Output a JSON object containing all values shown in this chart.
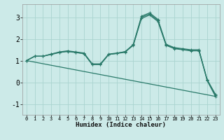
{
  "xlabel": "Humidex (Indice chaleur)",
  "ylabel": "",
  "background_color": "#cceae8",
  "grid_color": "#aad4d0",
  "line_color": "#2a7a6a",
  "xlim": [
    -0.5,
    23.5
  ],
  "ylim": [
    -1.5,
    3.6
  ],
  "yticks": [
    -1,
    0,
    1,
    2,
    3
  ],
  "xtick_labels": [
    "0",
    "1",
    "2",
    "3",
    "4",
    "5",
    "6",
    "7",
    "8",
    "9",
    "10",
    "11",
    "12",
    "13",
    "14",
    "15",
    "16",
    "17",
    "18",
    "19",
    "20",
    "21",
    "22",
    "23"
  ],
  "xtick_positions": [
    0,
    1,
    2,
    3,
    4,
    5,
    6,
    7,
    8,
    9,
    10,
    11,
    12,
    13,
    14,
    15,
    16,
    17,
    18,
    19,
    20,
    21,
    22,
    23
  ],
  "lines": [
    {
      "x": [
        0,
        1,
        2,
        3,
        4,
        5,
        6,
        7,
        8,
        9,
        10,
        11,
        12,
        13,
        14,
        15,
        16,
        17,
        18,
        19,
        20,
        21,
        22,
        23
      ],
      "y": [
        1.0,
        1.2,
        1.2,
        1.3,
        1.4,
        1.45,
        1.4,
        1.35,
        0.85,
        0.85,
        1.3,
        1.35,
        1.4,
        1.75,
        3.05,
        3.2,
        2.9,
        1.75,
        1.6,
        1.55,
        1.5,
        1.5,
        0.1,
        -0.6
      ],
      "has_marker": true
    },
    {
      "x": [
        0,
        1,
        2,
        3,
        4,
        5,
        6,
        7,
        8,
        9,
        10,
        11,
        12,
        13,
        14,
        15,
        16,
        17,
        18,
        19,
        20,
        21,
        22,
        23
      ],
      "y": [
        1.0,
        1.2,
        1.2,
        1.3,
        1.38,
        1.43,
        1.38,
        1.32,
        0.82,
        0.82,
        1.28,
        1.33,
        1.38,
        1.72,
        3.0,
        3.15,
        2.85,
        1.72,
        1.57,
        1.52,
        1.47,
        1.47,
        0.07,
        -0.65
      ],
      "has_marker": true
    },
    {
      "x": [
        0,
        1,
        2,
        3,
        4,
        5,
        6,
        7,
        8,
        9,
        10,
        11,
        12,
        13,
        14,
        15,
        16,
        17,
        18,
        19,
        20,
        21,
        22,
        23
      ],
      "y": [
        1.0,
        1.2,
        1.2,
        1.28,
        1.37,
        1.42,
        1.37,
        1.32,
        0.82,
        0.82,
        1.28,
        1.33,
        1.42,
        1.7,
        2.95,
        3.1,
        2.8,
        1.7,
        1.55,
        1.5,
        1.45,
        1.45,
        0.12,
        -0.55
      ],
      "has_marker": true
    },
    {
      "x": [
        0,
        23
      ],
      "y": [
        1.0,
        -0.65
      ],
      "has_marker": false
    }
  ]
}
